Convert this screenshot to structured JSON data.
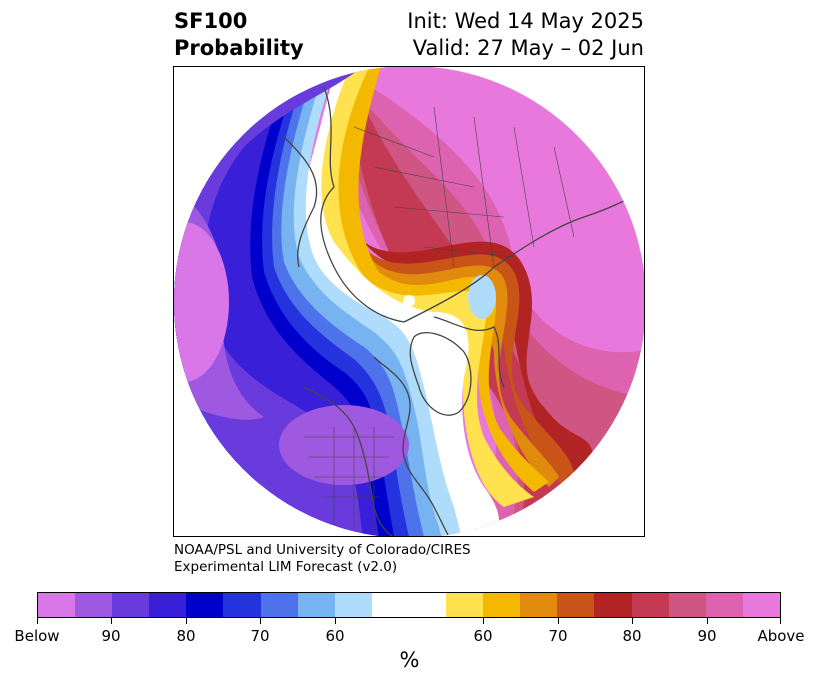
{
  "title": {
    "left_line1": "SF100",
    "left_line2": "Probability",
    "right_line1": "Init: Wed 14 May 2025",
    "right_line2": "Valid: 27 May – 02 Jun"
  },
  "credit": {
    "line1": "NOAA/PSL and University of Colorado/CIRES",
    "line2": "Experimental LIM Forecast (v2.0)"
  },
  "colorbar": {
    "unit": "%",
    "colors": [
      "#d977e8",
      "#9f58e0",
      "#6a3bdc",
      "#3a1fd8",
      "#0000cc",
      "#2433dd",
      "#4d72ea",
      "#77b2f1",
      "#b0dcfc",
      "#ffffff",
      "#ffffff",
      "#ffe24d",
      "#f5b800",
      "#e08b0e",
      "#c95418",
      "#b22424",
      "#c43a52",
      "#cf5582",
      "#dd62b0",
      "#e878dc"
    ],
    "tick_labels": [
      "Below",
      "90",
      "80",
      "70",
      "60",
      "60",
      "70",
      "80",
      "90",
      "Above"
    ]
  },
  "map": {
    "colors": {
      "below_extreme": "#d977e8",
      "below_90": "#9f58e0",
      "below_85": "#6a3bdc",
      "below_80": "#3a1fd8",
      "below_75": "#0000cc",
      "below_70": "#2433dd",
      "below_65": "#4d72ea",
      "below_60": "#77b2f1",
      "below_55": "#b0dcfc",
      "neutral": "#ffffff",
      "above_55": "#ffe24d",
      "above_60": "#f5b800",
      "above_65": "#e08b0e",
      "above_70": "#c95418",
      "above_75": "#b22424",
      "above_80": "#c43a52",
      "above_85": "#cf5582",
      "above_90": "#dd62b0",
      "above_extreme": "#e878dc",
      "coastline": "#444444"
    }
  }
}
